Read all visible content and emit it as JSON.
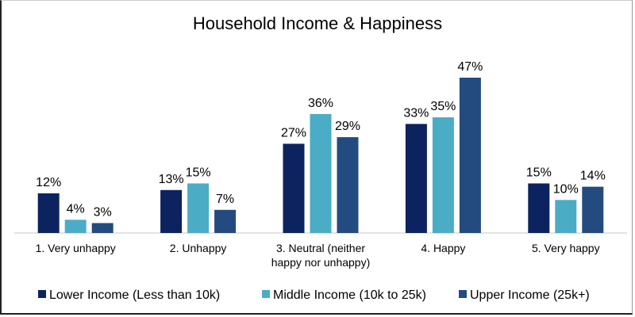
{
  "chart_data": {
    "type": "bar",
    "title": "Household Income & Happiness",
    "categories": [
      "1. Very unhappy",
      "2. Unhappy",
      "3. Neutral (neither happy nor unhappy)",
      "4. Happy",
      "5. Very happy"
    ],
    "category_lines": [
      [
        "1. Very unhappy"
      ],
      [
        "2. Unhappy"
      ],
      [
        "3. Neutral (neither",
        "happy nor unhappy)"
      ],
      [
        "4. Happy"
      ],
      [
        "5. Very happy"
      ]
    ],
    "series": [
      {
        "name": "Lower Income (Less than 10k)",
        "color": "#0c2360",
        "values": [
          12,
          13,
          27,
          33,
          15
        ]
      },
      {
        "name": "Middle Income (10k to 25k)",
        "color": "#4bacc6",
        "values": [
          4,
          15,
          36,
          35,
          10
        ]
      },
      {
        "name": "Upper Income (25k+)",
        "color": "#234b80",
        "values": [
          3,
          7,
          29,
          47,
          14
        ]
      }
    ],
    "value_format": "percent",
    "ylim": [
      0,
      50
    ],
    "grid": false,
    "legend": "bottom",
    "xlabel": "",
    "ylabel": ""
  }
}
